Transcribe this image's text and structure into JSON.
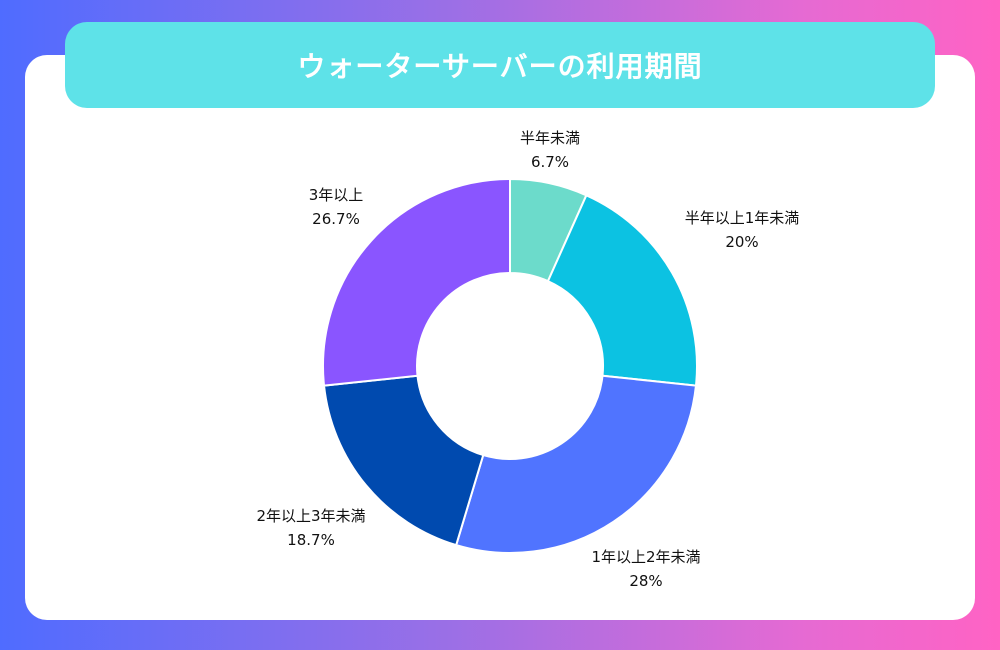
{
  "title": "ウォーターサーバーの利用期間",
  "colors": {
    "banner": "#5ee2e8",
    "card": "#ffffff"
  },
  "chart_data": {
    "type": "pie",
    "style": "donut",
    "slices": [
      {
        "label": "半年未満",
        "value": 6.7,
        "value_label": "6.7%",
        "color": "#6cdbcb"
      },
      {
        "label": "半年以上1年未満",
        "value": 20,
        "value_label": "20%",
        "color": "#0cc2e2"
      },
      {
        "label": "1年以上2年未満",
        "value": 28,
        "value_label": "28%",
        "color": "#5074ff"
      },
      {
        "label": "2年以上3年未満",
        "value": 18.7,
        "value_label": "18.7%",
        "color": "#004aaf"
      },
      {
        "label": "3年以上",
        "value": 26.7,
        "value_label": "26.7%",
        "color": "#8a55ff"
      }
    ],
    "legend": "none"
  }
}
